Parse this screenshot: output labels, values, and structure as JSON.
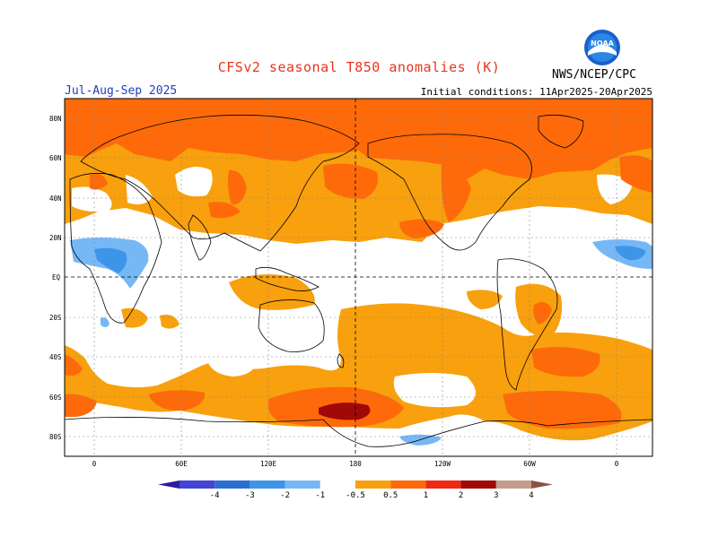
{
  "title": "CFSv2 seasonal T850 anomalies (K)",
  "period": "Jul-Aug-Sep 2025",
  "initial_conditions": "Initial conditions: 11Apr2025-20Apr2025",
  "agency": "NWS/NCEP/CPC",
  "logo": {
    "text": "NOAA",
    "icon": "noaa-logo"
  },
  "map": {
    "lat_labels": [
      "80N",
      "60N",
      "40N",
      "20N",
      "EQ",
      "20S",
      "40S",
      "60S",
      "80S"
    ],
    "lon_labels": [
      "0",
      "60E",
      "120E",
      "180",
      "120W",
      "60W",
      "0"
    ],
    "projection": "cylindrical equidistant, centered on 180"
  },
  "colorbar": {
    "labels": [
      "-4",
      "-3",
      "-2",
      "-1",
      "-0.5",
      "0.5",
      "1",
      "2",
      "3",
      "4"
    ],
    "colors": [
      "#2a1c9c",
      "#4343d4",
      "#2a6fd0",
      "#3e95e8",
      "#76b8f5",
      "#ffffff",
      "#f8a00d",
      "#fe6a0a",
      "#ee2a12",
      "#a10808",
      "#c29c8c",
      "#8a5245"
    ]
  },
  "colors": {
    "orange": "#f8a00d",
    "redorange": "#fe6a0a",
    "red": "#ee2a12",
    "darkred": "#a10808",
    "lightblue": "#76b8f5",
    "blue": "#3e95e8"
  }
}
